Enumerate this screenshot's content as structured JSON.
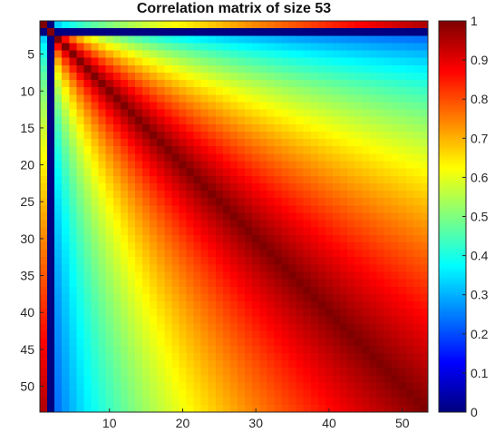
{
  "chart_data": {
    "type": "heatmap",
    "title": "Correlation matrix of size 53",
    "xlabel": "",
    "ylabel": "",
    "size": 53,
    "colormap": "jet",
    "xlim": [
      1,
      53
    ],
    "ylim": [
      1,
      53
    ],
    "x_ticks": [
      10,
      20,
      30,
      40,
      50
    ],
    "x_tick_labels": [
      "10",
      "20",
      "30",
      "40",
      "50"
    ],
    "y_ticks": [
      5,
      10,
      15,
      20,
      25,
      30,
      35,
      40,
      45,
      50
    ],
    "y_tick_labels": [
      "5",
      "10",
      "15",
      "20",
      "25",
      "30",
      "35",
      "40",
      "45",
      "50"
    ],
    "colorbar": {
      "range": [
        0,
        1
      ],
      "ticks": [
        0,
        0.1,
        0.2,
        0.3,
        0.4,
        0.5,
        0.6,
        0.7,
        0.8,
        0.9,
        1
      ],
      "tick_labels": [
        "0",
        "0.1",
        "0.2",
        "0.3",
        "0.4",
        "0.5",
        "0.6",
        "0.7",
        "0.8",
        "0.9",
        "1"
      ]
    },
    "special_rows": {
      "row_2_value": 0,
      "row_1_values_by_column": {
        "1": 1,
        "2": 0,
        "5": 0.35,
        "15": 0.55,
        "30": 0.7,
        "53": 0.95
      }
    },
    "structure": "diagonal values 1; off-diagonal correlations decrease with distance from the diagonal and increase with index"
  }
}
